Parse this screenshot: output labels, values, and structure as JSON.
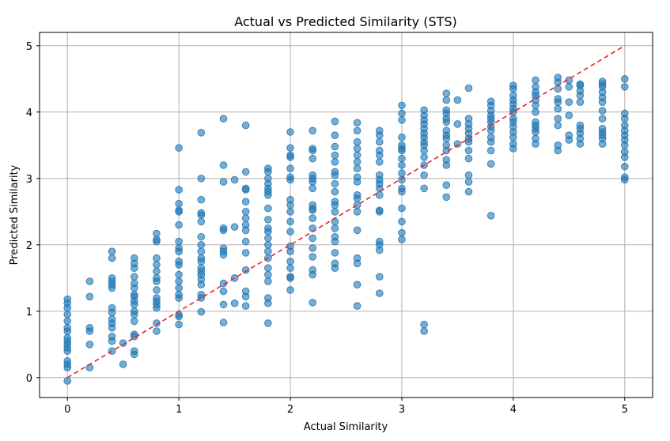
{
  "chart_data": {
    "type": "scatter",
    "title": "Actual vs Predicted Similarity (STS)",
    "xlabel": "Actual Similarity",
    "ylabel": "Predicted Similarity",
    "xlim": [
      -0.25,
      5.25
    ],
    "ylim": [
      -0.3,
      5.2
    ],
    "xticks": [
      "0",
      "1",
      "2",
      "3",
      "4",
      "5"
    ],
    "yticks": [
      "0",
      "1",
      "2",
      "3",
      "4",
      "5"
    ],
    "grid": true,
    "reference_line": {
      "from": [
        0,
        0
      ],
      "to": [
        5,
        5
      ],
      "style": "dashed",
      "color": "#e8252a"
    },
    "point_color": "#1f77b4",
    "point_alpha": 0.6,
    "points": [
      [
        0,
        -0.05
      ],
      [
        0,
        0.15
      ],
      [
        0,
        0.2
      ],
      [
        0,
        0.25
      ],
      [
        0,
        0.4
      ],
      [
        0,
        0.45
      ],
      [
        0,
        0.5
      ],
      [
        0,
        0.55
      ],
      [
        0,
        0.6
      ],
      [
        0,
        0.7
      ],
      [
        0,
        0.75
      ],
      [
        0,
        0.85
      ],
      [
        0,
        0.95
      ],
      [
        0,
        1.05
      ],
      [
        0,
        1.12
      ],
      [
        0,
        1.18
      ],
      [
        0.2,
        0.15
      ],
      [
        0.2,
        0.5
      ],
      [
        0.2,
        0.7
      ],
      [
        0.2,
        0.75
      ],
      [
        0.2,
        1.22
      ],
      [
        0.2,
        1.45
      ],
      [
        0.4,
        0.4
      ],
      [
        0.4,
        0.55
      ],
      [
        0.4,
        0.62
      ],
      [
        0.4,
        0.75
      ],
      [
        0.4,
        0.82
      ],
      [
        0.4,
        0.88
      ],
      [
        0.4,
        0.98
      ],
      [
        0.4,
        1.05
      ],
      [
        0.4,
        1.35
      ],
      [
        0.4,
        1.4
      ],
      [
        0.4,
        1.45
      ],
      [
        0.4,
        1.5
      ],
      [
        0.4,
        1.8
      ],
      [
        0.4,
        1.9
      ],
      [
        0.5,
        0.2
      ],
      [
        0.5,
        0.52
      ],
      [
        0.6,
        0.35
      ],
      [
        0.6,
        0.4
      ],
      [
        0.6,
        0.62
      ],
      [
        0.6,
        0.65
      ],
      [
        0.6,
        0.85
      ],
      [
        0.6,
        0.95
      ],
      [
        0.6,
        1.0
      ],
      [
        0.6,
        1.1
      ],
      [
        0.6,
        1.15
      ],
      [
        0.6,
        1.22
      ],
      [
        0.6,
        1.25
      ],
      [
        0.6,
        1.35
      ],
      [
        0.6,
        1.42
      ],
      [
        0.6,
        1.52
      ],
      [
        0.6,
        1.65
      ],
      [
        0.6,
        1.72
      ],
      [
        0.6,
        1.8
      ],
      [
        0.8,
        0.7
      ],
      [
        0.8,
        0.82
      ],
      [
        0.8,
        1.05
      ],
      [
        0.8,
        1.1
      ],
      [
        0.8,
        1.15
      ],
      [
        0.8,
        1.2
      ],
      [
        0.8,
        1.32
      ],
      [
        0.8,
        1.45
      ],
      [
        0.8,
        1.5
      ],
      [
        0.8,
        1.6
      ],
      [
        0.8,
        1.7
      ],
      [
        0.8,
        1.8
      ],
      [
        0.8,
        2.05
      ],
      [
        0.8,
        2.08
      ],
      [
        0.8,
        2.17
      ],
      [
        1,
        0.8
      ],
      [
        1,
        0.92
      ],
      [
        1,
        0.95
      ],
      [
        1,
        1.2
      ],
      [
        1,
        1.25
      ],
      [
        1,
        1.35
      ],
      [
        1,
        1.45
      ],
      [
        1,
        1.55
      ],
      [
        1,
        1.7
      ],
      [
        1,
        1.75
      ],
      [
        1,
        1.9
      ],
      [
        1,
        1.95
      ],
      [
        1,
        2.05
      ],
      [
        1,
        2.3
      ],
      [
        1,
        2.5
      ],
      [
        1,
        2.52
      ],
      [
        1,
        2.62
      ],
      [
        1,
        2.83
      ],
      [
        1,
        3.46
      ],
      [
        1.2,
        0.99
      ],
      [
        1.2,
        1.2
      ],
      [
        1.2,
        1.25
      ],
      [
        1.2,
        1.4
      ],
      [
        1.2,
        1.48
      ],
      [
        1.2,
        1.55
      ],
      [
        1.2,
        1.6
      ],
      [
        1.2,
        1.65
      ],
      [
        1.2,
        1.75
      ],
      [
        1.2,
        1.8
      ],
      [
        1.2,
        1.9
      ],
      [
        1.2,
        2.0
      ],
      [
        1.2,
        2.12
      ],
      [
        1.2,
        2.35
      ],
      [
        1.2,
        2.45
      ],
      [
        1.2,
        2.48
      ],
      [
        1.2,
        2.68
      ],
      [
        1.2,
        3.0
      ],
      [
        1.2,
        3.69
      ],
      [
        1.4,
        0.83
      ],
      [
        1.4,
        1.1
      ],
      [
        1.4,
        1.3
      ],
      [
        1.4,
        1.42
      ],
      [
        1.4,
        1.85
      ],
      [
        1.4,
        1.9
      ],
      [
        1.4,
        1.95
      ],
      [
        1.4,
        2.22
      ],
      [
        1.4,
        2.25
      ],
      [
        1.4,
        2.95
      ],
      [
        1.4,
        3.2
      ],
      [
        1.4,
        3.9
      ],
      [
        1.5,
        1.12
      ],
      [
        1.5,
        1.5
      ],
      [
        1.5,
        2.27
      ],
      [
        1.5,
        2.98
      ],
      [
        1.6,
        1.08
      ],
      [
        1.6,
        1.22
      ],
      [
        1.6,
        1.3
      ],
      [
        1.6,
        1.62
      ],
      [
        1.6,
        1.88
      ],
      [
        1.6,
        2.05
      ],
      [
        1.6,
        2.22
      ],
      [
        1.6,
        2.3
      ],
      [
        1.6,
        2.4
      ],
      [
        1.6,
        2.5
      ],
      [
        1.6,
        2.65
      ],
      [
        1.6,
        2.83
      ],
      [
        1.6,
        2.85
      ],
      [
        1.6,
        3.1
      ],
      [
        1.6,
        3.8
      ],
      [
        1.8,
        0.82
      ],
      [
        1.8,
        1.12
      ],
      [
        1.8,
        1.2
      ],
      [
        1.8,
        1.45
      ],
      [
        1.8,
        1.55
      ],
      [
        1.8,
        1.65
      ],
      [
        1.8,
        1.8
      ],
      [
        1.8,
        1.9
      ],
      [
        1.8,
        2.0
      ],
      [
        1.8,
        2.1
      ],
      [
        1.8,
        2.2
      ],
      [
        1.8,
        2.25
      ],
      [
        1.8,
        2.38
      ],
      [
        1.8,
        2.55
      ],
      [
        1.8,
        2.75
      ],
      [
        1.8,
        2.8
      ],
      [
        1.8,
        2.85
      ],
      [
        1.8,
        2.92
      ],
      [
        1.8,
        3.0
      ],
      [
        1.8,
        3.1
      ],
      [
        1.8,
        3.15
      ],
      [
        2,
        1.32
      ],
      [
        2,
        1.5
      ],
      [
        2,
        1.52
      ],
      [
        2,
        1.65
      ],
      [
        2,
        1.75
      ],
      [
        2,
        1.9
      ],
      [
        2,
        1.98
      ],
      [
        2,
        2.2
      ],
      [
        2,
        2.35
      ],
      [
        2,
        2.5
      ],
      [
        2,
        2.6
      ],
      [
        2,
        2.68
      ],
      [
        2,
        2.98
      ],
      [
        2,
        3.02
      ],
      [
        2,
        3.15
      ],
      [
        2,
        3.32
      ],
      [
        2,
        3.35
      ],
      [
        2,
        3.46
      ],
      [
        2,
        3.7
      ],
      [
        2.2,
        1.13
      ],
      [
        2.2,
        1.55
      ],
      [
        2.2,
        1.62
      ],
      [
        2.2,
        1.82
      ],
      [
        2.2,
        1.95
      ],
      [
        2.2,
        2.1
      ],
      [
        2.2,
        2.25
      ],
      [
        2.2,
        2.4
      ],
      [
        2.2,
        2.52
      ],
      [
        2.2,
        2.55
      ],
      [
        2.2,
        2.6
      ],
      [
        2.2,
        2.85
      ],
      [
        2.2,
        2.95
      ],
      [
        2.2,
        3.0
      ],
      [
        2.2,
        3.05
      ],
      [
        2.2,
        3.3
      ],
      [
        2.2,
        3.42
      ],
      [
        2.2,
        3.45
      ],
      [
        2.2,
        3.72
      ],
      [
        2.4,
        1.65
      ],
      [
        2.4,
        1.72
      ],
      [
        2.4,
        1.88
      ],
      [
        2.4,
        2.05
      ],
      [
        2.4,
        2.12
      ],
      [
        2.4,
        2.25
      ],
      [
        2.4,
        2.35
      ],
      [
        2.4,
        2.5
      ],
      [
        2.4,
        2.6
      ],
      [
        2.4,
        2.65
      ],
      [
        2.4,
        2.8
      ],
      [
        2.4,
        2.92
      ],
      [
        2.4,
        3.05
      ],
      [
        2.4,
        3.1
      ],
      [
        2.4,
        3.25
      ],
      [
        2.4,
        3.35
      ],
      [
        2.4,
        3.48
      ],
      [
        2.4,
        3.65
      ],
      [
        2.4,
        3.86
      ],
      [
        2.6,
        1.08
      ],
      [
        2.6,
        1.4
      ],
      [
        2.6,
        1.72
      ],
      [
        2.6,
        1.8
      ],
      [
        2.6,
        2.22
      ],
      [
        2.6,
        2.5
      ],
      [
        2.6,
        2.6
      ],
      [
        2.6,
        2.7
      ],
      [
        2.6,
        2.75
      ],
      [
        2.6,
        2.95
      ],
      [
        2.6,
        3.02
      ],
      [
        2.6,
        3.15
      ],
      [
        2.6,
        3.25
      ],
      [
        2.6,
        3.35
      ],
      [
        2.6,
        3.45
      ],
      [
        2.6,
        3.55
      ],
      [
        2.6,
        3.72
      ],
      [
        2.6,
        3.84
      ],
      [
        2.8,
        1.27
      ],
      [
        2.8,
        1.52
      ],
      [
        2.8,
        1.92
      ],
      [
        2.8,
        2.0
      ],
      [
        2.8,
        2.05
      ],
      [
        2.8,
        2.5
      ],
      [
        2.8,
        2.52
      ],
      [
        2.8,
        2.75
      ],
      [
        2.8,
        2.85
      ],
      [
        2.8,
        2.92
      ],
      [
        2.8,
        2.98
      ],
      [
        2.8,
        3.05
      ],
      [
        2.8,
        3.25
      ],
      [
        2.8,
        3.35
      ],
      [
        2.8,
        3.42
      ],
      [
        2.8,
        3.55
      ],
      [
        2.8,
        3.65
      ],
      [
        2.8,
        3.72
      ],
      [
        3,
        2.08
      ],
      [
        3,
        2.18
      ],
      [
        3,
        2.35
      ],
      [
        3,
        2.55
      ],
      [
        3,
        2.8
      ],
      [
        3,
        2.85
      ],
      [
        3,
        2.98
      ],
      [
        3,
        3.08
      ],
      [
        3,
        3.2
      ],
      [
        3,
        3.3
      ],
      [
        3,
        3.42
      ],
      [
        3,
        3.45
      ],
      [
        3,
        3.5
      ],
      [
        3,
        3.62
      ],
      [
        3,
        3.88
      ],
      [
        3,
        3.98
      ],
      [
        3,
        4.1
      ],
      [
        3.2,
        0.7
      ],
      [
        3.2,
        0.8
      ],
      [
        3.2,
        2.85
      ],
      [
        3.2,
        3.05
      ],
      [
        3.2,
        3.2
      ],
      [
        3.2,
        3.32
      ],
      [
        3.2,
        3.42
      ],
      [
        3.2,
        3.5
      ],
      [
        3.2,
        3.55
      ],
      [
        3.2,
        3.62
      ],
      [
        3.2,
        3.68
      ],
      [
        3.2,
        3.75
      ],
      [
        3.2,
        3.82
      ],
      [
        3.2,
        3.88
      ],
      [
        3.2,
        3.95
      ],
      [
        3.2,
        4.03
      ],
      [
        3.4,
        2.72
      ],
      [
        3.4,
        2.9
      ],
      [
        3.4,
        3.2
      ],
      [
        3.4,
        3.28
      ],
      [
        3.4,
        3.42
      ],
      [
        3.4,
        3.5
      ],
      [
        3.4,
        3.6
      ],
      [
        3.4,
        3.65
      ],
      [
        3.4,
        3.72
      ],
      [
        3.4,
        3.85
      ],
      [
        3.4,
        3.9
      ],
      [
        3.4,
        3.98
      ],
      [
        3.4,
        4.03
      ],
      [
        3.4,
        4.18
      ],
      [
        3.4,
        4.28
      ],
      [
        3.5,
        3.52
      ],
      [
        3.5,
        3.82
      ],
      [
        3.5,
        4.18
      ],
      [
        3.6,
        2.8
      ],
      [
        3.6,
        2.95
      ],
      [
        3.6,
        3.05
      ],
      [
        3.6,
        3.3
      ],
      [
        3.6,
        3.42
      ],
      [
        3.6,
        3.55
      ],
      [
        3.6,
        3.6
      ],
      [
        3.6,
        3.68
      ],
      [
        3.6,
        3.75
      ],
      [
        3.6,
        3.82
      ],
      [
        3.6,
        3.9
      ],
      [
        3.6,
        4.36
      ],
      [
        3.8,
        2.44
      ],
      [
        3.8,
        3.22
      ],
      [
        3.8,
        3.42
      ],
      [
        3.8,
        3.55
      ],
      [
        3.8,
        3.62
      ],
      [
        3.8,
        3.72
      ],
      [
        3.8,
        3.78
      ],
      [
        3.8,
        3.85
      ],
      [
        3.8,
        3.9
      ],
      [
        3.8,
        3.95
      ],
      [
        3.8,
        4.02
      ],
      [
        3.8,
        4.1
      ],
      [
        3.8,
        4.16
      ],
      [
        4,
        3.45
      ],
      [
        4,
        3.52
      ],
      [
        4,
        3.62
      ],
      [
        4,
        3.7
      ],
      [
        4,
        3.78
      ],
      [
        4,
        3.85
      ],
      [
        4,
        3.9
      ],
      [
        4,
        4.0
      ],
      [
        4,
        4.05
      ],
      [
        4,
        4.12
      ],
      [
        4,
        4.18
      ],
      [
        4,
        4.25
      ],
      [
        4,
        4.35
      ],
      [
        4,
        4.4
      ],
      [
        4.2,
        3.52
      ],
      [
        4.2,
        3.6
      ],
      [
        4.2,
        3.7
      ],
      [
        4.2,
        3.75
      ],
      [
        4.2,
        3.8
      ],
      [
        4.2,
        3.85
      ],
      [
        4.2,
        4.0
      ],
      [
        4.2,
        4.1
      ],
      [
        4.2,
        4.18
      ],
      [
        4.2,
        4.25
      ],
      [
        4.2,
        4.3
      ],
      [
        4.2,
        4.38
      ],
      [
        4.2,
        4.48
      ],
      [
        4.4,
        3.42
      ],
      [
        4.4,
        3.5
      ],
      [
        4.4,
        3.8
      ],
      [
        4.4,
        3.9
      ],
      [
        4.4,
        4.05
      ],
      [
        4.4,
        4.15
      ],
      [
        4.4,
        4.2
      ],
      [
        4.4,
        4.35
      ],
      [
        4.4,
        4.45
      ],
      [
        4.4,
        4.52
      ],
      [
        4.5,
        3.58
      ],
      [
        4.5,
        3.65
      ],
      [
        4.5,
        3.95
      ],
      [
        4.5,
        4.15
      ],
      [
        4.5,
        4.38
      ],
      [
        4.5,
        4.48
      ],
      [
        4.6,
        3.52
      ],
      [
        4.6,
        3.6
      ],
      [
        4.6,
        3.68
      ],
      [
        4.6,
        3.75
      ],
      [
        4.6,
        3.8
      ],
      [
        4.6,
        4.15
      ],
      [
        4.6,
        4.25
      ],
      [
        4.6,
        4.32
      ],
      [
        4.6,
        4.4
      ],
      [
        4.6,
        4.42
      ],
      [
        4.8,
        3.52
      ],
      [
        4.8,
        3.6
      ],
      [
        4.8,
        3.65
      ],
      [
        4.8,
        3.7
      ],
      [
        4.8,
        3.75
      ],
      [
        4.8,
        3.9
      ],
      [
        4.8,
        4.02
      ],
      [
        4.8,
        4.15
      ],
      [
        4.8,
        4.22
      ],
      [
        4.8,
        4.3
      ],
      [
        4.8,
        4.38
      ],
      [
        4.8,
        4.42
      ],
      [
        4.8,
        4.46
      ],
      [
        5,
        2.98
      ],
      [
        5,
        3.02
      ],
      [
        5,
        3.18
      ],
      [
        5,
        3.32
      ],
      [
        5,
        3.4
      ],
      [
        5,
        3.5
      ],
      [
        5,
        3.58
      ],
      [
        5,
        3.65
      ],
      [
        5,
        3.72
      ],
      [
        5,
        3.8
      ],
      [
        5,
        3.9
      ],
      [
        5,
        3.98
      ],
      [
        5,
        4.38
      ],
      [
        5,
        4.5
      ]
    ]
  }
}
